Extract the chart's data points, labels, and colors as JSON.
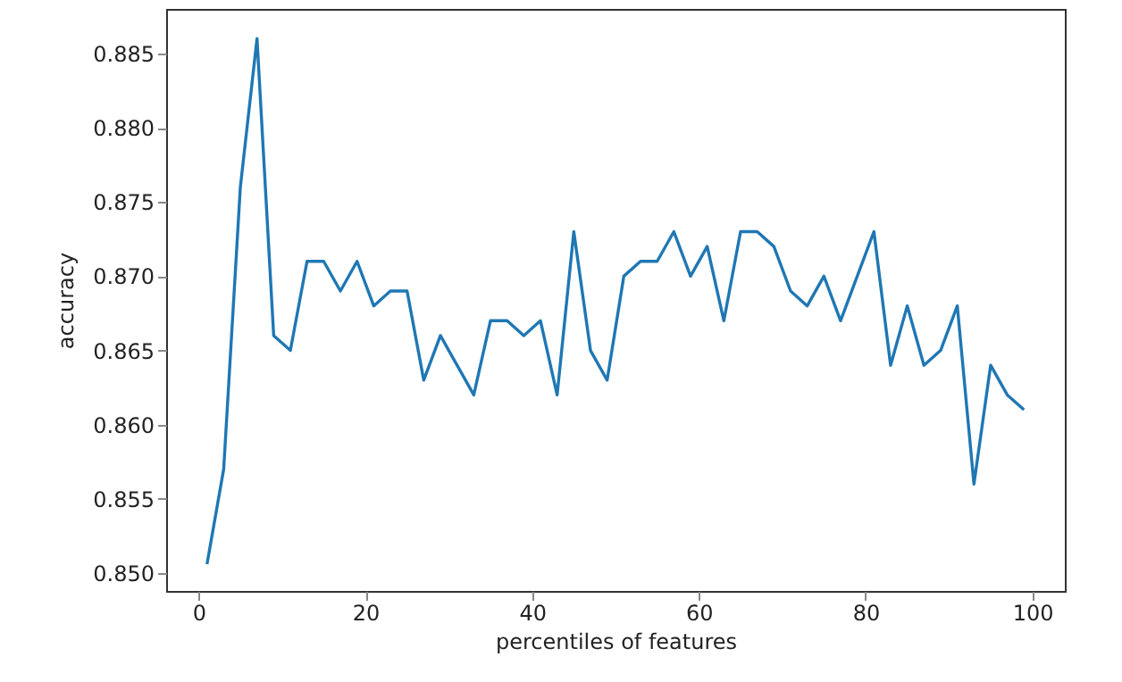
{
  "chart_data": {
    "type": "line",
    "xlabel": "percentiles of features",
    "ylabel": "accuracy",
    "x": [
      1,
      3,
      5,
      7,
      9,
      11,
      13,
      15,
      17,
      19,
      21,
      23,
      25,
      27,
      29,
      31,
      33,
      35,
      37,
      39,
      41,
      43,
      45,
      47,
      49,
      51,
      53,
      55,
      57,
      59,
      61,
      63,
      65,
      67,
      69,
      71,
      73,
      75,
      77,
      79,
      81,
      83,
      85,
      87,
      89,
      91,
      93,
      95,
      97,
      99
    ],
    "series": [
      {
        "color": "#1f77b4",
        "values": [
          0.8506,
          0.857,
          0.876,
          0.886,
          0.866,
          0.865,
          0.871,
          0.871,
          0.869,
          0.871,
          0.868,
          0.869,
          0.869,
          0.863,
          0.866,
          0.864,
          0.862,
          0.867,
          0.867,
          0.866,
          0.867,
          0.862,
          0.873,
          0.865,
          0.863,
          0.87,
          0.871,
          0.871,
          0.873,
          0.87,
          0.872,
          0.867,
          0.873,
          0.873,
          0.872,
          0.869,
          0.868,
          0.87,
          0.867,
          0.87,
          0.873,
          0.864,
          0.868,
          0.864,
          0.865,
          0.868,
          0.856,
          0.864,
          0.862,
          0.861
        ]
      }
    ],
    "xlim": [
      -3.9,
      103.9
    ],
    "ylim": [
      0.8488,
      0.888
    ],
    "xticks": [
      0,
      20,
      40,
      60,
      80,
      100
    ],
    "yticks": [
      {
        "value": 0.85,
        "label": "0.850"
      },
      {
        "value": 0.855,
        "label": "0.855"
      },
      {
        "value": 0.86,
        "label": "0.860"
      },
      {
        "value": 0.865,
        "label": "0.865"
      },
      {
        "value": 0.87,
        "label": "0.870"
      },
      {
        "value": 0.875,
        "label": "0.875"
      },
      {
        "value": 0.88,
        "label": "0.880"
      },
      {
        "value": 0.885,
        "label": "0.885"
      }
    ],
    "grid": false,
    "marker": "none",
    "line_style": "solid"
  }
}
